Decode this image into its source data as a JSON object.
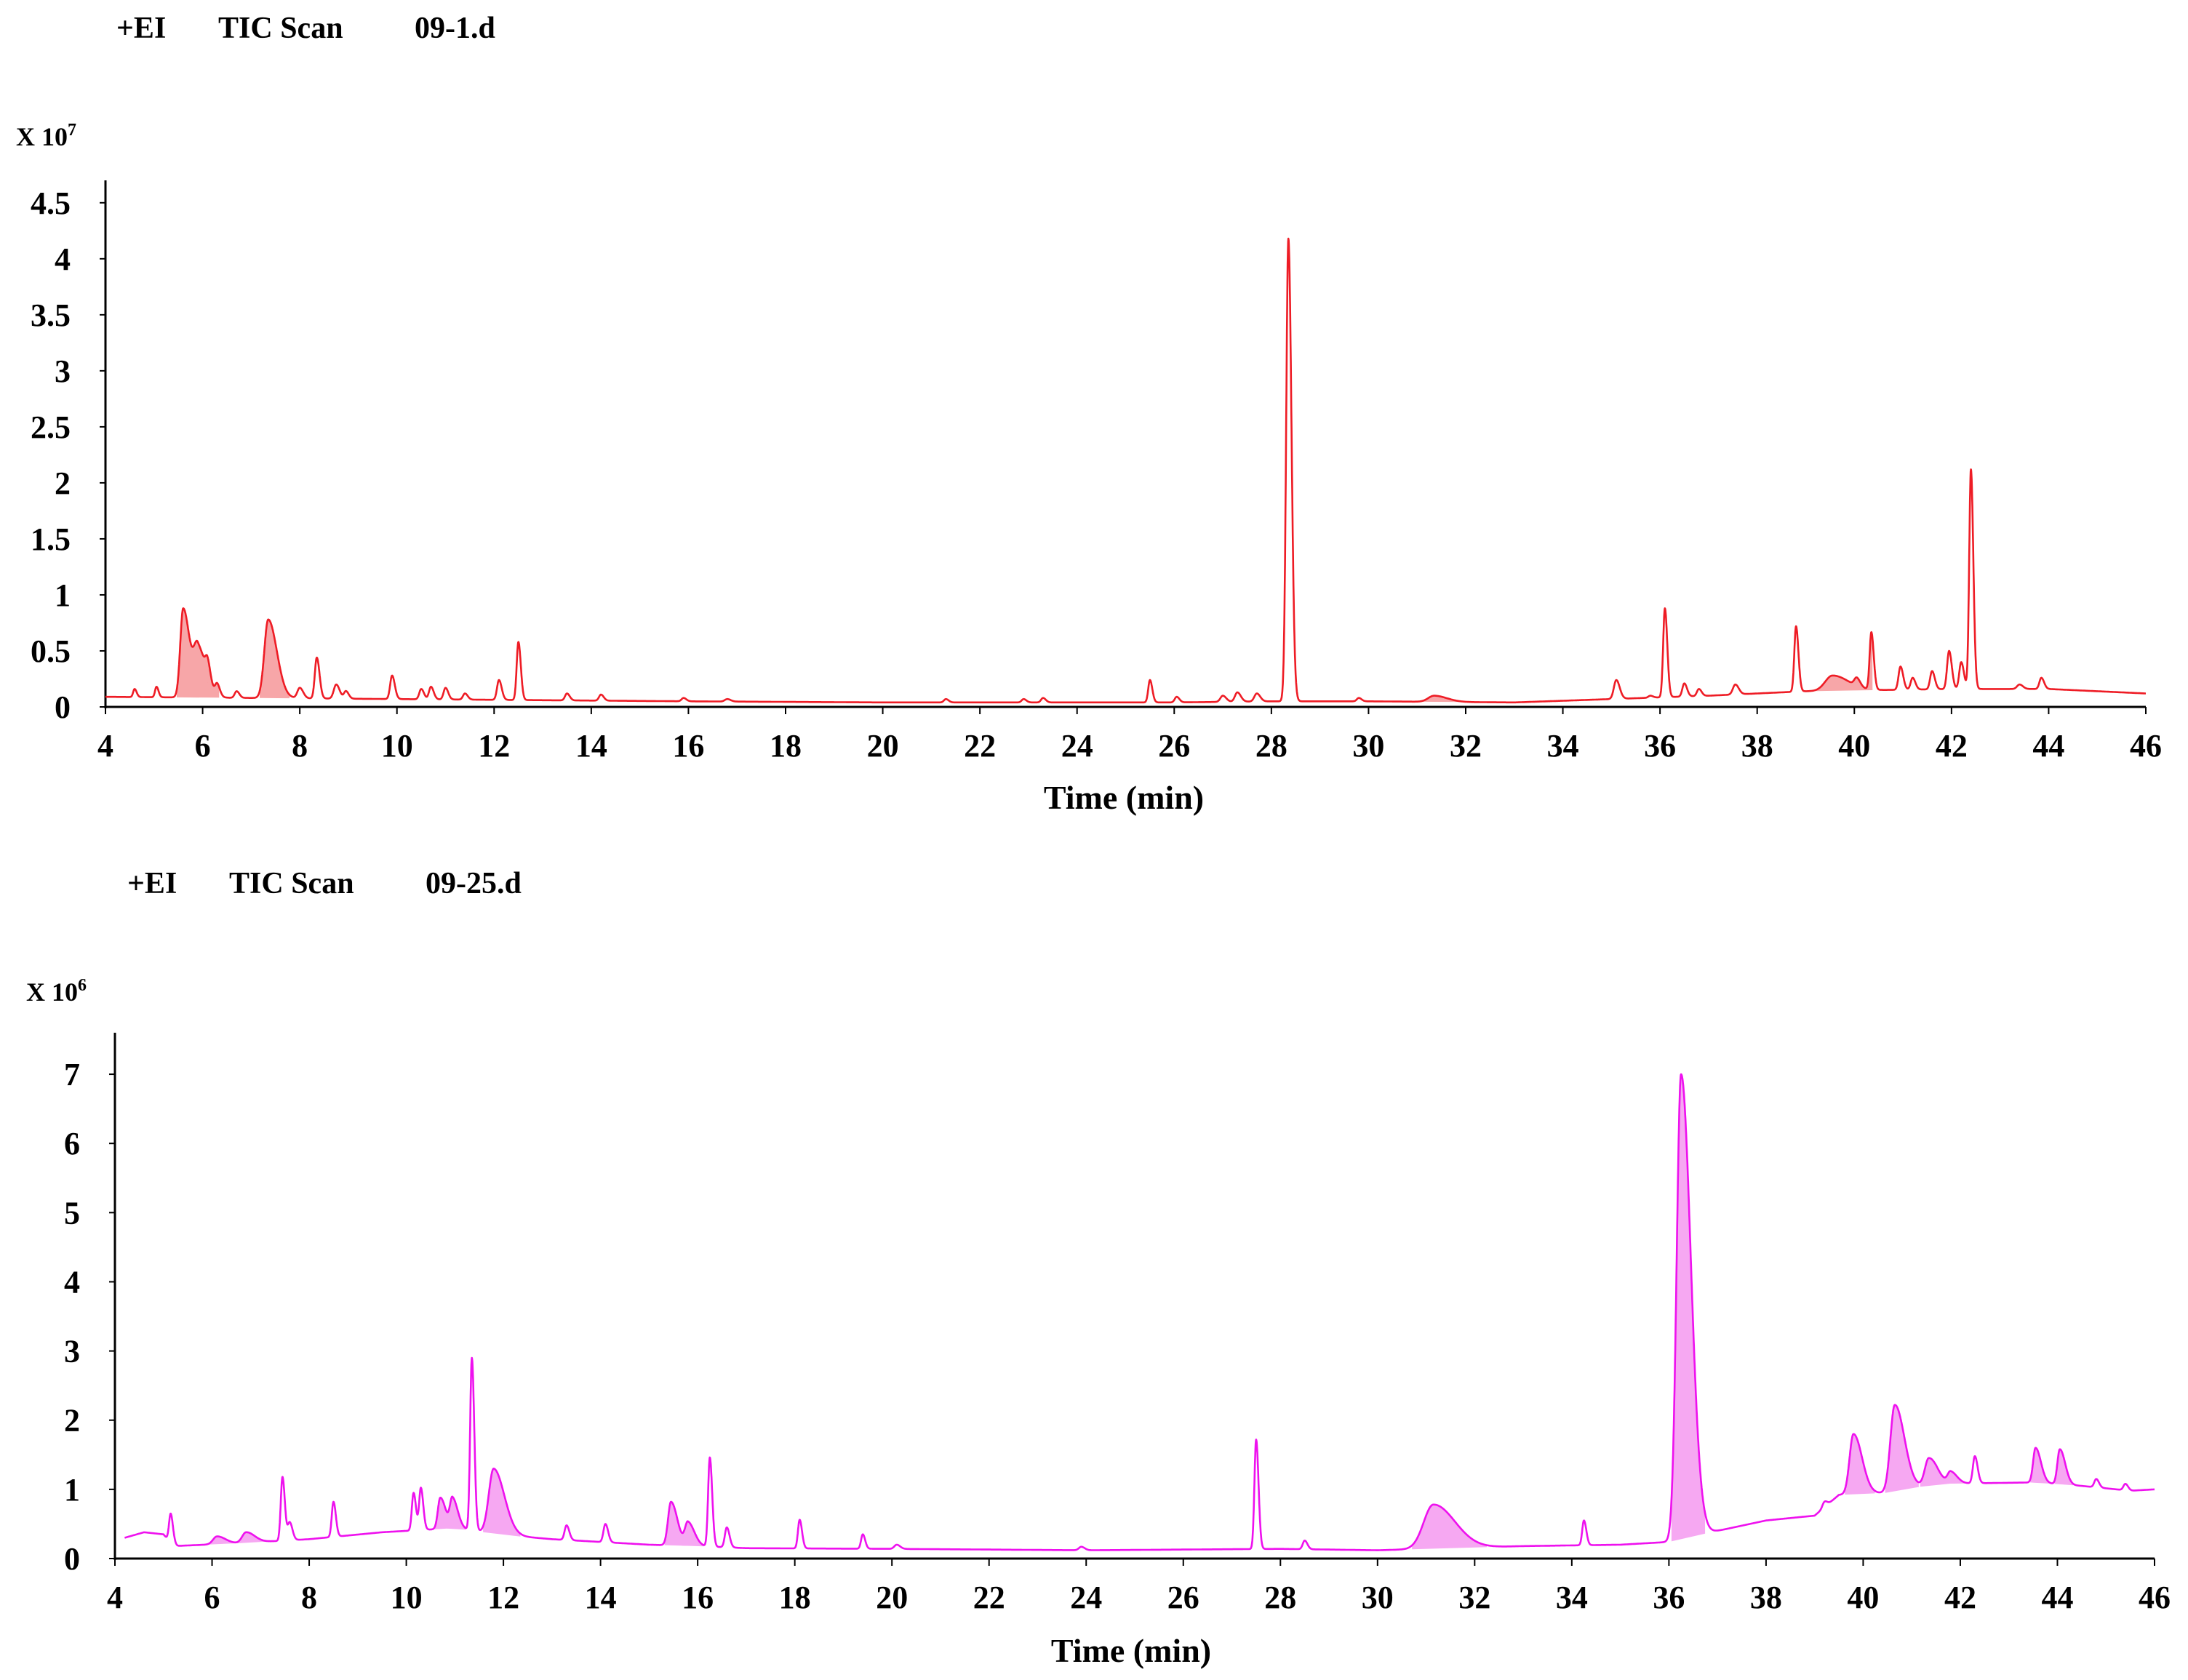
{
  "chart_data": [
    {
      "type": "line",
      "header": [
        "+EI",
        "TIC Scan",
        "09-1.d"
      ],
      "scale_label": "X 10",
      "scale_exp": "7",
      "xlabel": "Time (min)",
      "ylabel": "",
      "xlim": [
        4,
        46
      ],
      "ylim": [
        0,
        4.7
      ],
      "x_ticks": [
        "4",
        "6",
        "8",
        "10",
        "12",
        "14",
        "16",
        "18",
        "20",
        "22",
        "24",
        "26",
        "28",
        "30",
        "32",
        "34",
        "36",
        "38",
        "40",
        "42",
        "44",
        "46"
      ],
      "y_ticks": [
        "0",
        "0.5",
        "1",
        "1.5",
        "2",
        "2.5",
        "3",
        "3.5",
        "4",
        "4.5"
      ],
      "color": "#ee1c25",
      "fill": "#f7a6a8",
      "baseline": [
        [
          4,
          0.09
        ],
        [
          10,
          0.07
        ],
        [
          16,
          0.05
        ],
        [
          20,
          0.04
        ],
        [
          26,
          0.04
        ],
        [
          28,
          0.05
        ],
        [
          30,
          0.05
        ],
        [
          33,
          0.04
        ],
        [
          35,
          0.07
        ],
        [
          37,
          0.1
        ],
        [
          39,
          0.14
        ],
        [
          42,
          0.16
        ],
        [
          44,
          0.16
        ],
        [
          45,
          0.14
        ],
        [
          46,
          0.12
        ]
      ],
      "peaks": [
        {
          "x": 4.6,
          "y": 0.16,
          "w": 0.03
        },
        {
          "x": 5.05,
          "y": 0.18,
          "w": 0.03
        },
        {
          "x": 5.6,
          "y": 0.88,
          "w": 0.06,
          "filled": true
        },
        {
          "x": 5.9,
          "y": 0.52,
          "w": 0.08,
          "filled": true
        },
        {
          "x": 6.1,
          "y": 0.22,
          "w": 0.04
        },
        {
          "x": 6.3,
          "y": 0.18,
          "w": 0.04
        },
        {
          "x": 6.7,
          "y": 0.14,
          "w": 0.04
        },
        {
          "x": 7.35,
          "y": 0.78,
          "w": 0.08,
          "filled": true
        },
        {
          "x": 8.0,
          "y": 0.17,
          "w": 0.05
        },
        {
          "x": 8.35,
          "y": 0.44,
          "w": 0.04
        },
        {
          "x": 8.75,
          "y": 0.2,
          "w": 0.05
        },
        {
          "x": 8.95,
          "y": 0.14,
          "w": 0.04
        },
        {
          "x": 9.9,
          "y": 0.28,
          "w": 0.04
        },
        {
          "x": 10.5,
          "y": 0.16,
          "w": 0.04
        },
        {
          "x": 10.7,
          "y": 0.18,
          "w": 0.04
        },
        {
          "x": 11.0,
          "y": 0.17,
          "w": 0.04
        },
        {
          "x": 11.4,
          "y": 0.12,
          "w": 0.04
        },
        {
          "x": 12.1,
          "y": 0.24,
          "w": 0.04
        },
        {
          "x": 12.5,
          "y": 0.58,
          "w": 0.035
        },
        {
          "x": 13.5,
          "y": 0.12,
          "w": 0.04
        },
        {
          "x": 14.2,
          "y": 0.11,
          "w": 0.04
        },
        {
          "x": 15.9,
          "y": 0.08,
          "w": 0.04
        },
        {
          "x": 16.8,
          "y": 0.07,
          "w": 0.05
        },
        {
          "x": 21.3,
          "y": 0.07,
          "w": 0.04
        },
        {
          "x": 22.9,
          "y": 0.07,
          "w": 0.04
        },
        {
          "x": 23.3,
          "y": 0.08,
          "w": 0.04
        },
        {
          "x": 25.5,
          "y": 0.24,
          "w": 0.035
        },
        {
          "x": 26.05,
          "y": 0.09,
          "w": 0.04
        },
        {
          "x": 27.0,
          "y": 0.1,
          "w": 0.05
        },
        {
          "x": 27.3,
          "y": 0.13,
          "w": 0.05
        },
        {
          "x": 27.7,
          "y": 0.12,
          "w": 0.05
        },
        {
          "x": 28.35,
          "y": 4.18,
          "w": 0.045
        },
        {
          "x": 29.8,
          "y": 0.08,
          "w": 0.04
        },
        {
          "x": 31.35,
          "y": 0.1,
          "w": 0.12,
          "filled": true
        },
        {
          "x": 35.1,
          "y": 0.24,
          "w": 0.05
        },
        {
          "x": 35.8,
          "y": 0.1,
          "w": 0.04
        },
        {
          "x": 36.1,
          "y": 0.88,
          "w": 0.035
        },
        {
          "x": 36.5,
          "y": 0.21,
          "w": 0.04
        },
        {
          "x": 36.8,
          "y": 0.16,
          "w": 0.04
        },
        {
          "x": 37.55,
          "y": 0.2,
          "w": 0.05
        },
        {
          "x": 38.8,
          "y": 0.72,
          "w": 0.035
        },
        {
          "x": 39.55,
          "y": 0.28,
          "w": 0.15,
          "filled": true
        },
        {
          "x": 40.05,
          "y": 0.22,
          "w": 0.05
        },
        {
          "x": 40.35,
          "y": 0.66,
          "w": 0.035
        },
        {
          "x": 40.95,
          "y": 0.36,
          "w": 0.04
        },
        {
          "x": 41.2,
          "y": 0.26,
          "w": 0.04
        },
        {
          "x": 41.6,
          "y": 0.32,
          "w": 0.04
        },
        {
          "x": 41.95,
          "y": 0.5,
          "w": 0.04
        },
        {
          "x": 42.2,
          "y": 0.4,
          "w": 0.04
        },
        {
          "x": 42.4,
          "y": 2.12,
          "w": 0.035
        },
        {
          "x": 43.4,
          "y": 0.2,
          "w": 0.05
        },
        {
          "x": 43.85,
          "y": 0.26,
          "w": 0.04
        }
      ]
    },
    {
      "type": "line",
      "header": [
        "+EI",
        "TIC Scan",
        "09-25.d"
      ],
      "scale_label": "X 10",
      "scale_exp": "6",
      "xlabel": "Time (min)",
      "ylabel": "",
      "xlim": [
        4,
        46
      ],
      "ylim": [
        0,
        7.6
      ],
      "x_ticks": [
        "4",
        "6",
        "8",
        "10",
        "12",
        "14",
        "16",
        "18",
        "20",
        "22",
        "24",
        "26",
        "28",
        "30",
        "32",
        "34",
        "36",
        "38",
        "40",
        "42",
        "44",
        "46"
      ],
      "y_ticks": [
        "0",
        "1",
        "2",
        "3",
        "4",
        "5",
        "6",
        "7"
      ],
      "color": "#ee11ee",
      "fill": "#f6a8f2",
      "baseline": [
        [
          4.2,
          0.3
        ],
        [
          4.6,
          0.38
        ],
        [
          5.0,
          0.35
        ],
        [
          5.2,
          0.18
        ],
        [
          6.5,
          0.22
        ],
        [
          8.0,
          0.28
        ],
        [
          9.5,
          0.38
        ],
        [
          11.0,
          0.44
        ],
        [
          12.0,
          0.34
        ],
        [
          13.0,
          0.28
        ],
        [
          14.0,
          0.24
        ],
        [
          15.0,
          0.2
        ],
        [
          16.0,
          0.18
        ],
        [
          17.0,
          0.15
        ],
        [
          20.0,
          0.14
        ],
        [
          24.0,
          0.12
        ],
        [
          28.0,
          0.14
        ],
        [
          30.0,
          0.12
        ],
        [
          31.0,
          0.14
        ],
        [
          33.0,
          0.18
        ],
        [
          35.0,
          0.2
        ],
        [
          36.0,
          0.24
        ],
        [
          37.0,
          0.4
        ],
        [
          38.0,
          0.55
        ],
        [
          39.0,
          0.62
        ],
        [
          39.5,
          0.92
        ],
        [
          40.5,
          0.95
        ],
        [
          41.5,
          1.08
        ],
        [
          43.5,
          1.1
        ],
        [
          44.5,
          1.05
        ],
        [
          45.5,
          0.98
        ],
        [
          46,
          1.0
        ]
      ],
      "peaks": [
        {
          "x": 5.15,
          "y": 0.65,
          "w": 0.035
        },
        {
          "x": 6.1,
          "y": 0.32,
          "w": 0.08,
          "filled": true
        },
        {
          "x": 6.7,
          "y": 0.38,
          "w": 0.08,
          "filled": true
        },
        {
          "x": 7.45,
          "y": 1.18,
          "w": 0.035
        },
        {
          "x": 7.6,
          "y": 0.52,
          "w": 0.04
        },
        {
          "x": 8.5,
          "y": 0.82,
          "w": 0.035
        },
        {
          "x": 10.15,
          "y": 0.95,
          "w": 0.035
        },
        {
          "x": 10.3,
          "y": 1.02,
          "w": 0.035
        },
        {
          "x": 10.7,
          "y": 0.88,
          "w": 0.05,
          "filled": true
        },
        {
          "x": 10.95,
          "y": 0.86,
          "w": 0.05,
          "filled": true
        },
        {
          "x": 11.35,
          "y": 2.9,
          "w": 0.035
        },
        {
          "x": 11.8,
          "y": 1.3,
          "w": 0.1,
          "filled": true
        },
        {
          "x": 13.3,
          "y": 0.48,
          "w": 0.04
        },
        {
          "x": 14.1,
          "y": 0.5,
          "w": 0.04
        },
        {
          "x": 15.45,
          "y": 0.82,
          "w": 0.06,
          "filled": true
        },
        {
          "x": 15.8,
          "y": 0.52,
          "w": 0.06,
          "filled": true
        },
        {
          "x": 16.25,
          "y": 1.46,
          "w": 0.035
        },
        {
          "x": 16.6,
          "y": 0.45,
          "w": 0.04
        },
        {
          "x": 18.1,
          "y": 0.56,
          "w": 0.035
        },
        {
          "x": 19.4,
          "y": 0.35,
          "w": 0.035
        },
        {
          "x": 20.1,
          "y": 0.2,
          "w": 0.05
        },
        {
          "x": 23.9,
          "y": 0.17,
          "w": 0.05
        },
        {
          "x": 27.5,
          "y": 1.72,
          "w": 0.035
        },
        {
          "x": 28.5,
          "y": 0.26,
          "w": 0.04
        },
        {
          "x": 31.15,
          "y": 0.78,
          "w": 0.2,
          "filled": true
        },
        {
          "x": 34.25,
          "y": 0.55,
          "w": 0.035
        },
        {
          "x": 36.25,
          "y": 7.0,
          "w": 0.09,
          "filled": true
        },
        {
          "x": 39.2,
          "y": 0.82,
          "w": 0.04
        },
        {
          "x": 39.8,
          "y": 1.8,
          "w": 0.08,
          "filled": true
        },
        {
          "x": 40.65,
          "y": 2.22,
          "w": 0.09,
          "filled": true
        },
        {
          "x": 41.35,
          "y": 1.45,
          "w": 0.08,
          "filled": true
        },
        {
          "x": 41.8,
          "y": 1.25,
          "w": 0.06,
          "filled": true
        },
        {
          "x": 42.3,
          "y": 1.48,
          "w": 0.04
        },
        {
          "x": 43.55,
          "y": 1.6,
          "w": 0.05,
          "filled": true
        },
        {
          "x": 44.05,
          "y": 1.58,
          "w": 0.05,
          "filled": true
        },
        {
          "x": 44.8,
          "y": 1.15,
          "w": 0.04
        },
        {
          "x": 45.4,
          "y": 1.08,
          "w": 0.04
        }
      ]
    }
  ]
}
